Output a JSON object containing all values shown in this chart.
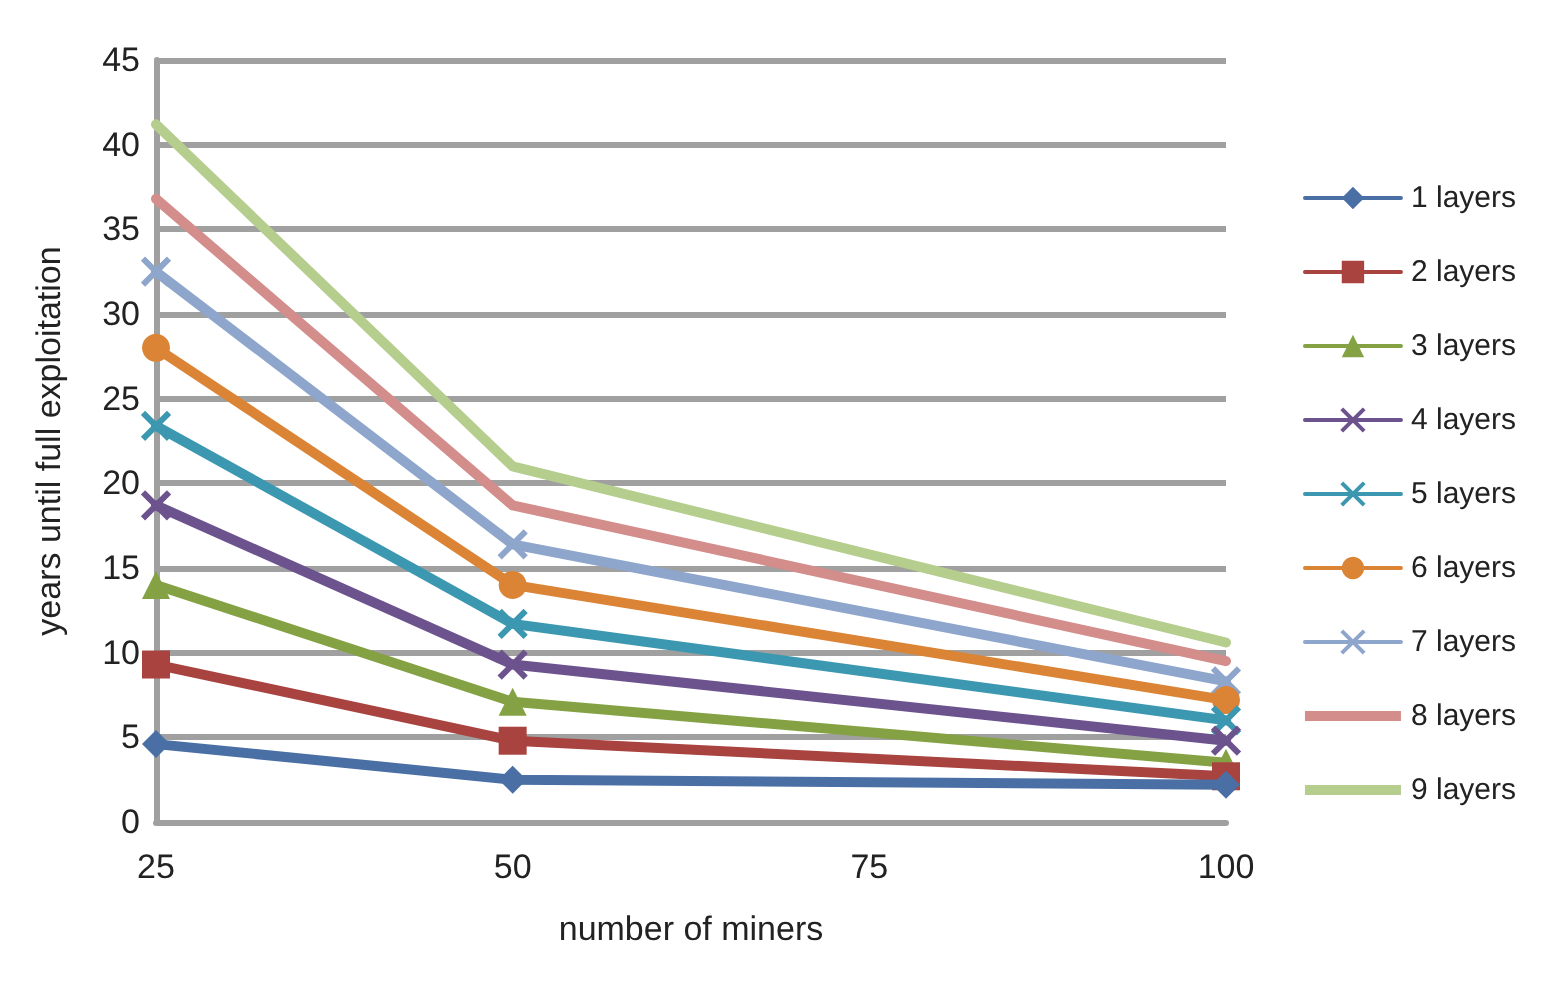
{
  "chart_data": {
    "type": "line",
    "xlabel": "number of miners",
    "ylabel": "years until full exploitation",
    "x": [
      25,
      50,
      100
    ],
    "xlim": [
      25,
      100
    ],
    "xticks": [
      25,
      50,
      75,
      100
    ],
    "ylim": [
      0,
      45
    ],
    "yticks": [
      0,
      5,
      10,
      15,
      20,
      25,
      30,
      35,
      40,
      45
    ],
    "grid": "y",
    "legend": "right",
    "series": [
      {
        "name": "1 layers",
        "color": "#4a6fa5",
        "marker": "diamond",
        "values": [
          4.6,
          2.5,
          2.2
        ]
      },
      {
        "name": "2 layers",
        "color": "#a84340",
        "marker": "square",
        "values": [
          9.3,
          4.8,
          2.7
        ]
      },
      {
        "name": "3 layers",
        "color": "#84a244",
        "marker": "triangle",
        "values": [
          14,
          7.1,
          3.5
        ]
      },
      {
        "name": "4 layers",
        "color": "#6c538e",
        "marker": "cross",
        "values": [
          18.7,
          9.3,
          4.8
        ]
      },
      {
        "name": "5 layers",
        "color": "#3c98b0",
        "marker": "cross",
        "values": [
          23.4,
          11.7,
          6
        ]
      },
      {
        "name": "6 layers",
        "color": "#dc8435",
        "marker": "circle",
        "values": [
          28,
          14,
          7.2
        ]
      },
      {
        "name": "7 layers",
        "color": "#8fa6cc",
        "marker": "cross",
        "values": [
          32.5,
          16.4,
          8.3
        ]
      },
      {
        "name": "8 layers",
        "color": "#d38d8b",
        "marker": "none",
        "values": [
          36.8,
          18.7,
          9.5
        ]
      },
      {
        "name": "9 layers",
        "color": "#b5cd8d",
        "marker": "none",
        "values": [
          41.2,
          21,
          10.6
        ]
      }
    ]
  }
}
